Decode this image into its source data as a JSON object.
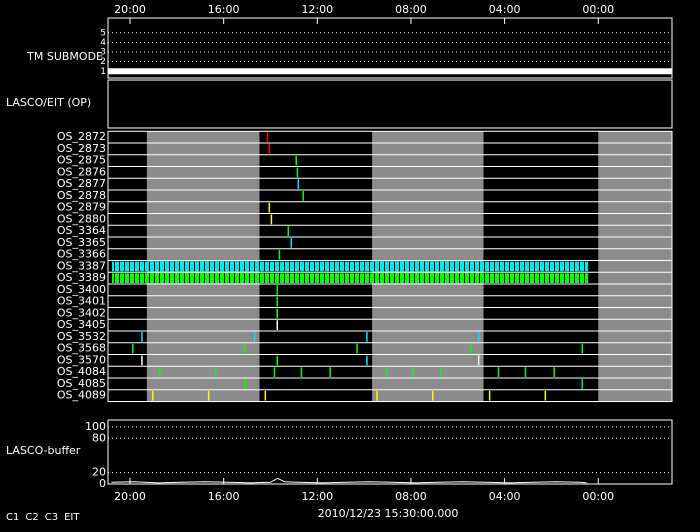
{
  "chart_data": {
    "type": "timeline",
    "xlim": [
      20.94,
      -3.15
    ],
    "xticks": [
      {
        "value": 20,
        "label": "20:00"
      },
      {
        "value": 16,
        "label": "16:00"
      },
      {
        "value": 12,
        "label": "12:00"
      },
      {
        "value": 8,
        "label": "08:00"
      },
      {
        "value": 4,
        "label": "04:00"
      },
      {
        "value": 0,
        "label": "00:00"
      }
    ],
    "x_label": "2010/12/23 15:30:00.000",
    "submode": {
      "label": "TM SUBMODE",
      "ylim": [
        0.3,
        5.5
      ],
      "yticks": [
        1,
        2,
        3,
        4,
        5
      ],
      "x": [
        20.94,
        -3.15
      ],
      "values": [
        1,
        1
      ],
      "color": "#ffffff"
    },
    "op_label": "LASCO/EIT (OP)",
    "shaded": [
      [
        19.28,
        14.47
      ],
      [
        9.66,
        4.9
      ],
      [
        0,
        -3.15
      ]
    ],
    "shade_color": "#8c8c8c",
    "rows": [
      {
        "name": "OS_2872",
        "x": [
          14.13
        ],
        "colors": [
          "#ff0000"
        ]
      },
      {
        "name": "OS_2873",
        "x": [
          14.05
        ],
        "colors": [
          "#ff0000"
        ]
      },
      {
        "name": "OS_2875",
        "x": [
          12.9
        ],
        "colors": [
          "#00ff00"
        ]
      },
      {
        "name": "OS_2876",
        "x": [
          12.85
        ],
        "colors": [
          "#00ff00"
        ]
      },
      {
        "name": "OS_2877",
        "x": [
          12.81
        ],
        "colors": [
          "#00e5ee"
        ]
      },
      {
        "name": "OS_2878",
        "x": [
          12.6
        ],
        "colors": [
          "#00ff00"
        ]
      },
      {
        "name": "OS_2879",
        "x": [
          14.05
        ],
        "colors": [
          "#ffff00"
        ]
      },
      {
        "name": "OS_2880",
        "x": [
          13.96
        ],
        "colors": [
          "#ffff00"
        ]
      },
      {
        "name": "OS_3364",
        "x": [
          13.24
        ],
        "colors": [
          "#00ff00"
        ]
      },
      {
        "name": "OS_3365",
        "x": [
          13.11
        ],
        "colors": [
          "#00e5ee"
        ]
      },
      {
        "name": "OS_3366",
        "x": [
          13.62
        ],
        "colors": [
          "#00ff00"
        ]
      },
      {
        "name": "OS_3387",
        "span": [
          20.77,
          0.43
        ],
        "color": "#00e5ee"
      },
      {
        "name": "OS_3389",
        "span": [
          20.77,
          0.43
        ],
        "color": "#00ff00"
      },
      {
        "name": "OS_3400",
        "x": [
          13.71
        ],
        "colors": [
          "#00ff00"
        ]
      },
      {
        "name": "OS_3401",
        "x": [
          13.71
        ],
        "colors": [
          "#00ff00"
        ]
      },
      {
        "name": "OS_3402",
        "x": [
          13.71
        ],
        "colors": [
          "#00ff00"
        ]
      },
      {
        "name": "OS_3405",
        "x": [
          13.71
        ],
        "colors": [
          "#ffffff"
        ]
      },
      {
        "name": "OS_3532",
        "x": [
          19.49,
          14.68,
          9.88,
          5.11
        ],
        "colors": [
          "#00e5ee",
          "#00e5ee",
          "#00e5ee",
          "#00e5ee"
        ]
      },
      {
        "name": "OS_3568",
        "x": [
          19.88,
          15.11,
          10.3,
          5.45,
          0.68
        ],
        "colors": [
          "#00ff00",
          "#00ff00",
          "#00ff00",
          "#00ff00",
          "#00ff00"
        ]
      },
      {
        "name": "OS_3570",
        "x": [
          19.49,
          13.71,
          9.88,
          5.11
        ],
        "colors": [
          "#ffffff",
          "#00ff00",
          "#00e5ee",
          "#ffffff"
        ]
      },
      {
        "name": "OS_4084",
        "x": [
          18.73,
          16.34,
          13.83,
          12.68,
          11.45,
          9.03,
          7.92,
          6.73,
          4.26,
          3.11,
          1.88
        ],
        "colors": [
          "#00ff00",
          "#00ff00",
          "#00ff00",
          "#00ff00",
          "#00ff00",
          "#00ff00",
          "#00ff00",
          "#00ff00",
          "#00ff00",
          "#00ff00",
          "#00ff00"
        ]
      },
      {
        "name": "OS_4085",
        "x": [
          15.07,
          0.68
        ],
        "colors": [
          "#00ff00",
          "#00ff00"
        ]
      },
      {
        "name": "OS_4089",
        "x": [
          19.03,
          16.64,
          14.22,
          9.45,
          7.07,
          4.64,
          2.26
        ],
        "colors": [
          "#ffff00",
          "#ffff00",
          "#ffff00",
          "#ffff00",
          "#ffff00",
          "#ffff00",
          "#ffff00"
        ]
      }
    ],
    "buffer": {
      "label": "LASCO-buffer",
      "ylim": [
        0,
        112
      ],
      "yticks": [
        0,
        20,
        80,
        100
      ],
      "color": "#ffffff",
      "x": [
        20.8,
        19.8,
        18.8,
        17.8,
        16.8,
        15.8,
        14.8,
        14.0,
        13.7,
        13.4,
        12.8,
        11.8,
        10.8,
        9.8,
        8.8,
        7.8,
        6.8,
        5.8,
        4.8,
        3.8,
        2.8,
        1.8,
        0.8,
        0.5
      ],
      "values": [
        3,
        4,
        2,
        3,
        4,
        3,
        2,
        3,
        10,
        4,
        3,
        2,
        3,
        4,
        3,
        2,
        3,
        4,
        3,
        2,
        3,
        4,
        3,
        2
      ]
    },
    "legend": [
      {
        "name": "C1",
        "color": "#ff0000"
      },
      {
        "name": "C2",
        "color": "#00ff00"
      },
      {
        "name": "C3",
        "color": "#dddddd"
      },
      {
        "name": "EIT",
        "color": "#ffffa0"
      }
    ]
  }
}
